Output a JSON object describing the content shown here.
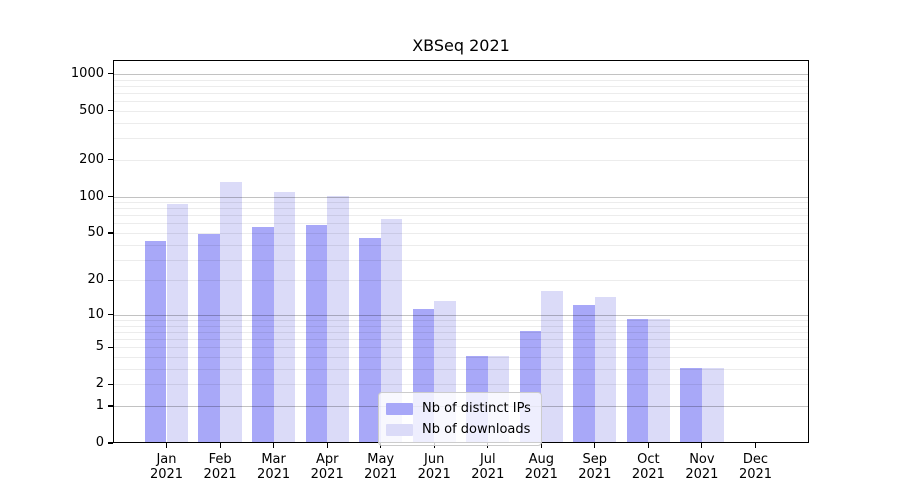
{
  "chart_data": {
    "type": "bar",
    "title": "XBSeq 2021",
    "categories": [
      "Jan 2021",
      "Feb 2021",
      "Mar 2021",
      "Apr 2021",
      "May 2021",
      "Jun 2021",
      "Jul 2021",
      "Aug 2021",
      "Sep 2021",
      "Oct 2021",
      "Nov 2021",
      "Dec 2021"
    ],
    "series": [
      {
        "name": "Nb of distinct IPs",
        "color": "#a8a8f8",
        "values": [
          42,
          48,
          55,
          57,
          45,
          11,
          4,
          7,
          12,
          9,
          3,
          0
        ]
      },
      {
        "name": "Nb of downloads",
        "color": "#dbdbf8",
        "values": [
          85,
          130,
          107,
          100,
          64,
          13,
          4,
          16,
          14,
          9,
          3,
          0
        ]
      }
    ],
    "yscale": "log10(1+x)",
    "ylim": [
      0,
      1300
    ],
    "yticks": [
      1000,
      500,
      200,
      100,
      50,
      20,
      10,
      5,
      2,
      1,
      0
    ],
    "grid": {
      "orientation": "horizontal",
      "minor_multiples_per_decade": [
        2,
        3,
        4,
        5,
        6,
        7,
        8,
        9
      ],
      "major_lines_at": [
        1,
        10,
        100,
        1000
      ],
      "drawn_above_bars": true
    },
    "legend": {
      "position": "lower-center"
    },
    "colors": {
      "background": "#ffffff",
      "spine": "#000000"
    }
  }
}
